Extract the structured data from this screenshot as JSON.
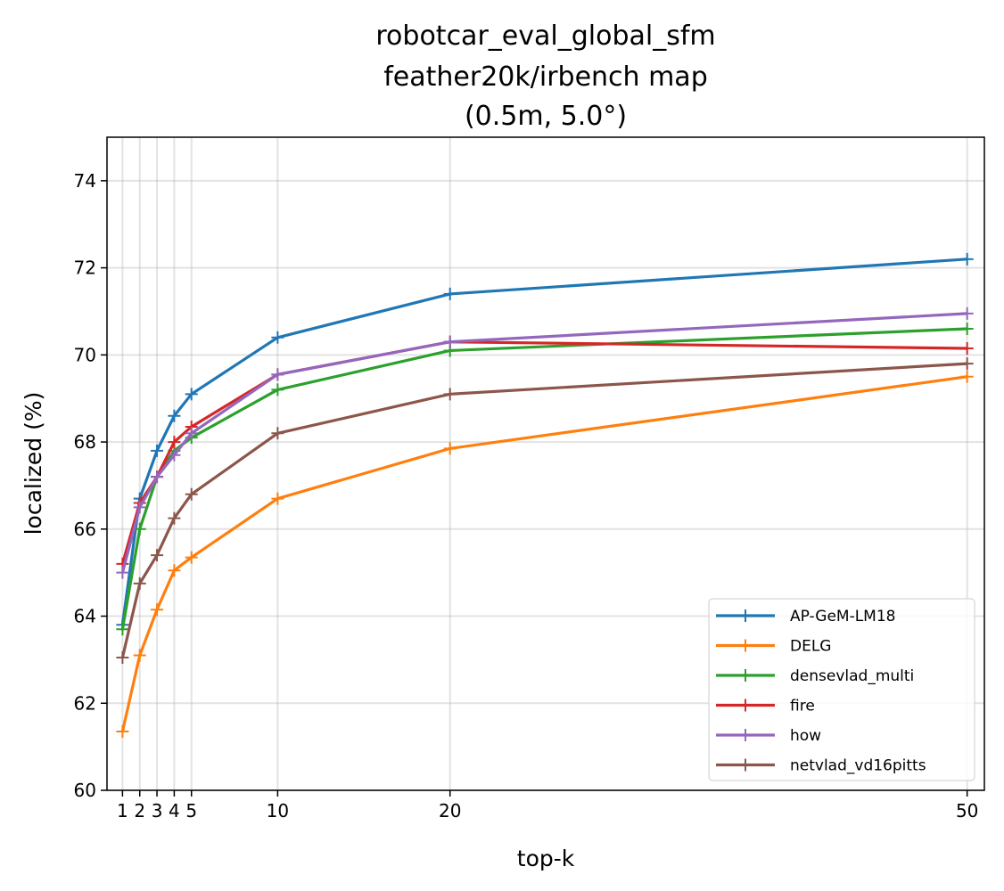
{
  "chart_data": {
    "type": "line",
    "title": [
      "robotcar_eval_global_sfm",
      "feather20k/irbench map",
      "(0.5m, 5.0°)"
    ],
    "xlabel": "top-k",
    "ylabel": "localized (%)",
    "x": [
      1,
      2,
      3,
      4,
      5,
      10,
      20,
      50
    ],
    "xticks": [
      "1",
      "2",
      "3",
      "4",
      "5",
      "10",
      "20",
      "50"
    ],
    "yticks": [
      "60",
      "62",
      "64",
      "66",
      "68",
      "70",
      "72",
      "74"
    ],
    "ylim": [
      60,
      75
    ],
    "xlim": [
      0.1,
      51
    ],
    "grid": true,
    "legend_position": "lower-right",
    "series": [
      {
        "name": "AP-GeM-LM18",
        "color": "#1f77b4",
        "values": [
          63.8,
          66.7,
          67.8,
          68.6,
          69.1,
          70.4,
          71.4,
          72.2
        ]
      },
      {
        "name": "DELG",
        "color": "#ff7f0e",
        "values": [
          61.35,
          63.1,
          64.15,
          65.05,
          65.35,
          66.7,
          67.85,
          69.5
        ]
      },
      {
        "name": "densevlad_multi",
        "color": "#2ca02c",
        "values": [
          63.7,
          66.0,
          67.2,
          67.8,
          68.1,
          69.2,
          70.1,
          70.6
        ]
      },
      {
        "name": "fire",
        "color": "#d62728",
        "values": [
          65.2,
          66.6,
          67.2,
          68.0,
          68.35,
          69.55,
          70.3,
          70.15
        ]
      },
      {
        "name": "how",
        "color": "#9467bd",
        "values": [
          65.0,
          66.5,
          67.2,
          67.7,
          68.2,
          69.55,
          70.3,
          70.95
        ]
      },
      {
        "name": "netvlad_vd16pitts",
        "color": "#8c564b",
        "values": [
          63.05,
          64.75,
          65.4,
          66.25,
          66.8,
          68.2,
          69.1,
          69.8
        ]
      }
    ]
  }
}
